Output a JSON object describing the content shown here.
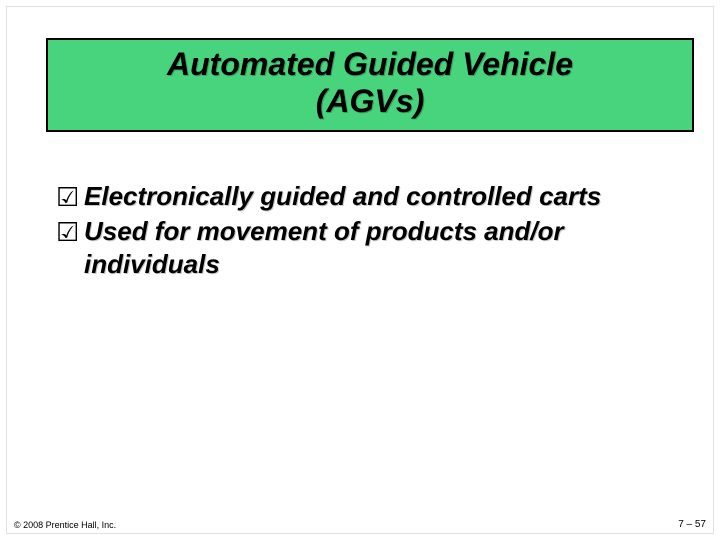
{
  "colors": {
    "title_bg": "#47d47d",
    "title_border": "#000000",
    "slide_bg": "#ffffff",
    "text": "#000000",
    "frame": "#e0e0e0"
  },
  "typography": {
    "family": "Arial",
    "title_fontsize_pt": 32,
    "title_style": "bold italic",
    "body_fontsize_pt": 26,
    "body_style": "bold italic",
    "footer_fontsize_pt": 9
  },
  "title": {
    "line1": "Automated Guided Vehicle",
    "line2": "(AGVs)"
  },
  "bullets": [
    {
      "icon": "☑",
      "text": "Electronically guided and controlled carts"
    },
    {
      "icon": "☑",
      "text": "Used for movement of products and/or individuals"
    }
  ],
  "footer": {
    "left": "© 2008 Prentice Hall, Inc.",
    "right": "7 – 57"
  }
}
